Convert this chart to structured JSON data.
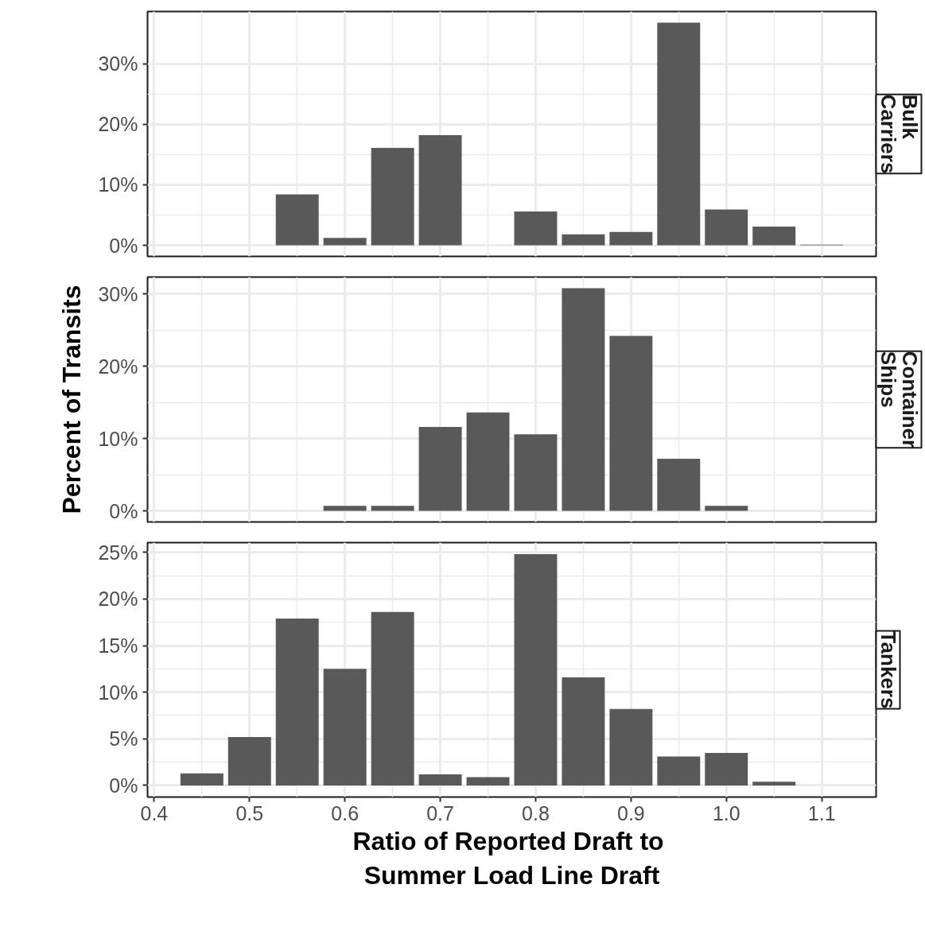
{
  "chart_data": [
    {
      "type": "bar",
      "title": "Bulk Carriers",
      "x": [
        0.55,
        0.6,
        0.65,
        0.7,
        0.8,
        0.85,
        0.9,
        0.95,
        1.0,
        1.05,
        1.1
      ],
      "series": [
        {
          "color": "#595959",
          "values": [
            8.4,
            1.2,
            16.1,
            18.2,
            5.6,
            1.8,
            2.2,
            36.8,
            5.9,
            3.1,
            0.1
          ]
        }
      ],
      "xlim": [
        0.393,
        1.157
      ],
      "xticks": [
        0.4,
        0.5,
        0.6,
        0.7,
        0.8,
        0.9,
        1.0,
        1.1
      ],
      "ylim": [
        -1.84,
        38.64
      ],
      "yticks": [
        {
          "value": 0,
          "label": "0%"
        },
        {
          "value": 10,
          "label": "10%"
        },
        {
          "value": 20,
          "label": "20%"
        },
        {
          "value": 30,
          "label": "30%"
        }
      ],
      "grid": true,
      "tick_labels": "y"
    },
    {
      "type": "bar",
      "title": "Container Ships",
      "ylabel": "Percent of Transits",
      "x": [
        0.6,
        0.65,
        0.7,
        0.75,
        0.8,
        0.85,
        0.9,
        0.95,
        1.0
      ],
      "series": [
        {
          "color": "#595959",
          "values": [
            0.7,
            0.7,
            11.6,
            13.6,
            10.6,
            30.8,
            24.2,
            7.2,
            0.7
          ]
        }
      ],
      "xlim": [
        0.393,
        1.157
      ],
      "xticks": [
        0.4,
        0.5,
        0.6,
        0.7,
        0.8,
        0.9,
        1.0,
        1.1
      ],
      "ylim": [
        -1.54,
        32.34
      ],
      "yticks": [
        {
          "value": 0,
          "label": "0%"
        },
        {
          "value": 10,
          "label": "10%"
        },
        {
          "value": 20,
          "label": "20%"
        },
        {
          "value": 30,
          "label": "30%"
        }
      ],
      "grid": true,
      "tick_labels": "y"
    },
    {
      "type": "bar",
      "title": "Tankers",
      "xlabel": "Ratio of Reported Draft  to Summer Load Line Draft",
      "x": [
        0.45,
        0.5,
        0.55,
        0.6,
        0.65,
        0.7,
        0.75,
        0.8,
        0.85,
        0.9,
        0.95,
        1.0,
        1.05
      ],
      "series": [
        {
          "color": "#595959",
          "values": [
            1.3,
            5.2,
            17.9,
            12.5,
            18.6,
            1.2,
            0.9,
            24.8,
            11.6,
            8.2,
            3.1,
            3.5,
            0.4
          ]
        }
      ],
      "xlim": [
        0.393,
        1.157
      ],
      "xticks": [
        0.4,
        {
          "value": 0.5,
          "label": "0.5"
        },
        0.6,
        0.7,
        0.8,
        0.9,
        {
          "value": 1.0,
          "label": "1.0"
        },
        1.1
      ],
      "ylim": [
        -1.24,
        26.04
      ],
      "yticks": [
        {
          "value": 0,
          "label": "0%"
        },
        {
          "value": 5,
          "label": "5%"
        },
        {
          "value": 10,
          "label": "10%"
        },
        {
          "value": 15,
          "label": "15%"
        },
        {
          "value": 20,
          "label": "20%"
        },
        {
          "value": 25,
          "label": "25%"
        }
      ],
      "grid": true
    }
  ]
}
